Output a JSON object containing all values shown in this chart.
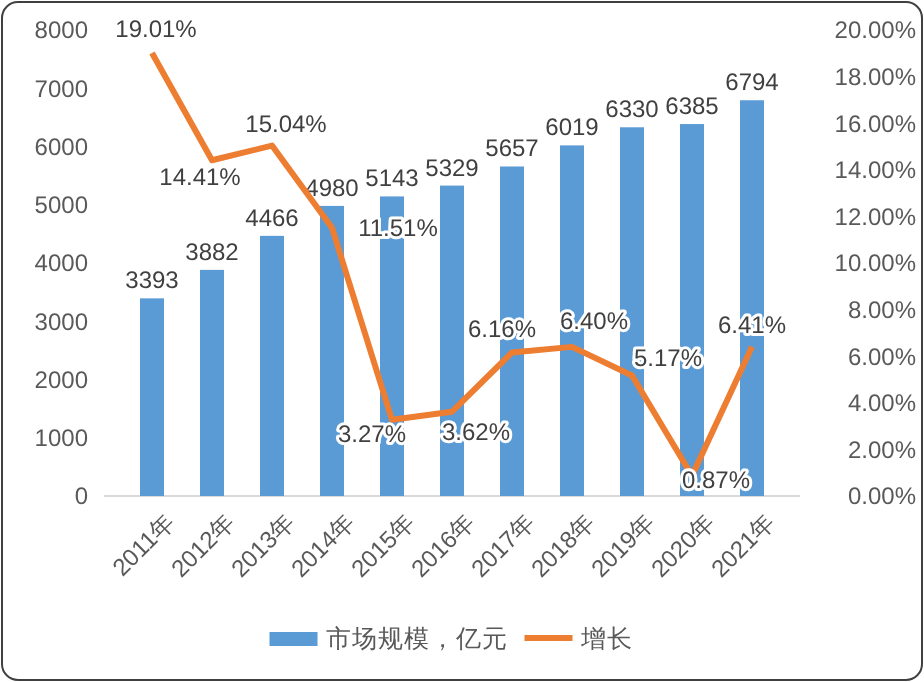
{
  "chart_data": {
    "type": "bar",
    "categories": [
      "2011年",
      "2012年",
      "2013年",
      "2014年",
      "2015年",
      "2016年",
      "2017年",
      "2018年",
      "2019年",
      "2020年",
      "2021年"
    ],
    "series": [
      {
        "name": "市场规模，亿元",
        "color": "#5b9bd5",
        "values": [
          3393,
          3882,
          4466,
          4980,
          5143,
          5329,
          5657,
          6019,
          6330,
          6385,
          6794
        ]
      },
      {
        "name": "增长",
        "type": "line",
        "axis": "y2",
        "color": "#ed7d31",
        "values": [
          19.01,
          14.41,
          15.04,
          11.51,
          3.27,
          3.62,
          6.16,
          6.4,
          5.17,
          0.87,
          6.41
        ],
        "value_labels": [
          "19.01%",
          "14.41%",
          "15.04%",
          "11.51%",
          "3.27%",
          "3.62%",
          "6.16%",
          "6.40%",
          "5.17%",
          "0.87%",
          "6.41%"
        ]
      }
    ],
    "data_labels": true,
    "ylim": [
      0,
      8000
    ],
    "yticks": [
      0,
      1000,
      2000,
      3000,
      4000,
      5000,
      6000,
      7000,
      8000
    ],
    "y2lim": [
      0,
      20
    ],
    "y2ticks": [
      {
        "value": 0,
        "label": "0.00%"
      },
      {
        "value": 2,
        "label": "2.00%"
      },
      {
        "value": 4,
        "label": "4.00%"
      },
      {
        "value": 6,
        "label": "6.00%"
      },
      {
        "value": 8,
        "label": "8.00%"
      },
      {
        "value": 10,
        "label": "10.00%"
      },
      {
        "value": 12,
        "label": "12.00%"
      },
      {
        "value": 14,
        "label": "14.00%"
      },
      {
        "value": 16,
        "label": "16.00%"
      },
      {
        "value": 18,
        "label": "18.00%"
      },
      {
        "value": 20,
        "label": "20.00%"
      }
    ],
    "grid": false,
    "legend": "bottom",
    "marker": "none",
    "line_style": "solid"
  }
}
